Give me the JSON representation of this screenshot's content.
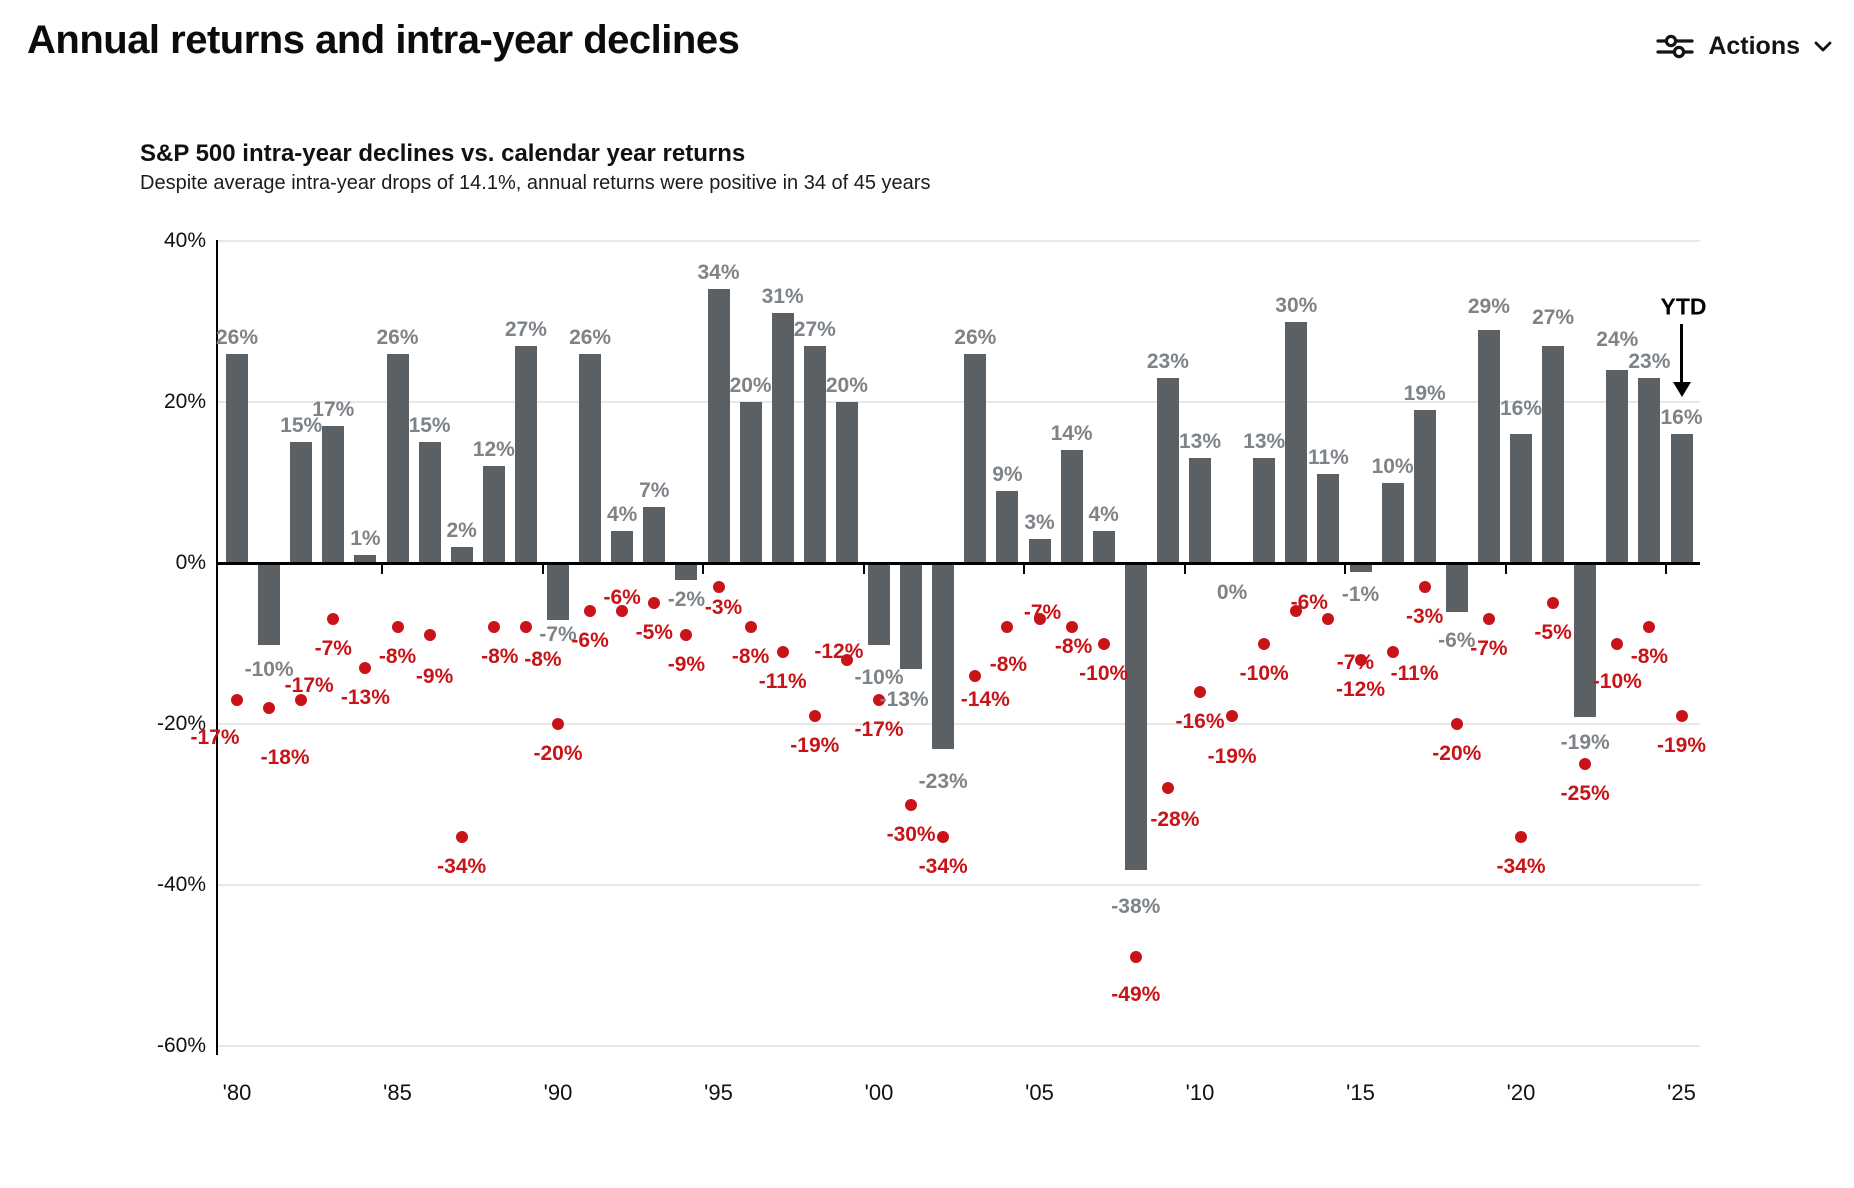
{
  "page": {
    "title": "Annual returns and intra-year declines"
  },
  "actions": {
    "label": "Actions",
    "icon": "sliders-icon",
    "chevron": "chevron-down-icon"
  },
  "chart": {
    "title": "S&P 500 intra-year declines vs. calendar year returns",
    "subtitle": "Despite average intra-year drops of 14.1%, annual returns were positive in 34 of 45 years",
    "ytd_label": "YTD"
  },
  "chart_data": {
    "type": "bar",
    "title": "S&P 500 intra-year declines vs. calendar year returns",
    "x": [
      1980,
      1981,
      1982,
      1983,
      1984,
      1985,
      1986,
      1987,
      1988,
      1989,
      1990,
      1991,
      1992,
      1993,
      1994,
      1995,
      1996,
      1997,
      1998,
      1999,
      2000,
      2001,
      2002,
      2003,
      2004,
      2005,
      2006,
      2007,
      2008,
      2009,
      2010,
      2011,
      2012,
      2013,
      2014,
      2015,
      2016,
      2017,
      2018,
      2019,
      2020,
      2021,
      2022,
      2023,
      2024,
      2025
    ],
    "series": [
      {
        "name": "Calendar year return",
        "type": "bar",
        "color": "#5b6065",
        "values": [
          26,
          -10,
          15,
          17,
          1,
          26,
          15,
          2,
          12,
          27,
          -7,
          26,
          4,
          7,
          -2,
          34,
          20,
          31,
          27,
          20,
          -10,
          -13,
          -23,
          26,
          9,
          3,
          14,
          4,
          -38,
          23,
          13,
          0,
          13,
          30,
          11,
          -1,
          10,
          19,
          -6,
          29,
          16,
          27,
          -19,
          24,
          23,
          16
        ]
      },
      {
        "name": "Intra-year decline",
        "type": "scatter",
        "color": "#c81418",
        "values": [
          -17,
          -18,
          -17,
          -7,
          -13,
          -8,
          -9,
          -34,
          -8,
          -8,
          -20,
          -6,
          -6,
          -5,
          -9,
          -3,
          -8,
          -11,
          -19,
          -12,
          -17,
          -30,
          -34,
          -14,
          -8,
          -7,
          -8,
          -10,
          -49,
          -28,
          -16,
          -19,
          -10,
          -6,
          -7,
          -12,
          -11,
          -3,
          -20,
          -7,
          -34,
          -5,
          -25,
          -10,
          -8,
          -19
        ]
      }
    ],
    "yticks": [
      40,
      20,
      0,
      -20,
      -40,
      -60
    ],
    "ylim": [
      -60,
      40
    ],
    "xticklabels": [
      "'80",
      "'85",
      "'90",
      "'95",
      "'00",
      "'05",
      "'10",
      "'15",
      "'20",
      "'25"
    ],
    "grid": "horizontal",
    "legend": "none",
    "annotation": {
      "text": "YTD",
      "year": 2025
    },
    "label_colors": {
      "bar_labels": "#7e8388",
      "dot_labels": "#c81418"
    },
    "layout_hints": {
      "bar_label_offsets": {
        "1981": [
          0,
          10
        ],
        "1994": [
          0,
          5
        ],
        "2000": [
          0,
          18
        ],
        "2001": [
          -7,
          16
        ],
        "2002": [
          0,
          18
        ],
        "2008": [
          0,
          22
        ],
        "2015": [
          0,
          8
        ],
        "2018": [
          0,
          14
        ],
        "2019": [
          0,
          -7
        ],
        "2020": [
          0,
          -9
        ],
        "2021": [
          0,
          -12
        ],
        "2022": [
          0,
          11
        ],
        "2023": [
          0,
          -14
        ]
      },
      "dot_label_offsets": {
        "1980": [
          -22,
          8
        ],
        "1981": [
          16,
          20
        ],
        "1982": [
          8,
          -44
        ],
        "1986": [
          5,
          12
        ],
        "1988": [
          6,
          0
        ],
        "1989": [
          17,
          3
        ],
        "1992": [
          0,
          -43
        ],
        "1995": [
          5,
          -9
        ],
        "1999": [
          -8,
          -38
        ],
        "2003": [
          10,
          -6
        ],
        "2004": [
          1,
          8
        ],
        "2005": [
          3,
          -36
        ],
        "2006": [
          2,
          -10
        ],
        "2008": [
          0,
          8
        ],
        "2009": [
          7,
          2
        ],
        "2011": [
          0,
          11
        ],
        "2013": [
          13,
          -38
        ],
        "2014": [
          27,
          14
        ],
        "2016": [
          22,
          -8
        ],
        "2023": [
          0,
          8
        ]
      }
    }
  }
}
